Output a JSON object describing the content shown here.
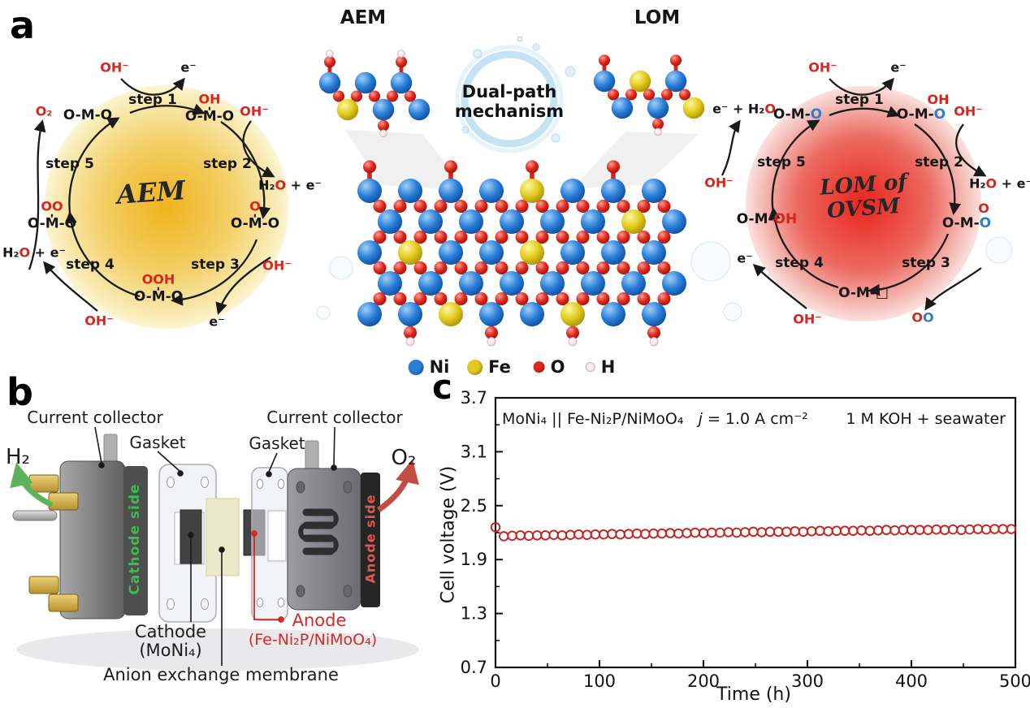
{
  "panel_a": {
    "label": "a",
    "inset_left_label": "AEM",
    "inset_right_label": "LOM",
    "splash_title_line1": "Dual-path",
    "splash_title_line2": "mechanism",
    "legend": [
      {
        "name": "Ni",
        "color": "#2b7fd9"
      },
      {
        "name": "Fe",
        "color": "#e3cb1d"
      },
      {
        "name": "O",
        "color": "#e02a1d"
      },
      {
        "name": "H",
        "color": "#f7edf0"
      }
    ],
    "aem": {
      "title": "AEM",
      "glow_color": "#efb31e",
      "steps": [
        "step 1",
        "step 2",
        "step 3",
        "step 4",
        "step 5"
      ],
      "species": {
        "top_left": "O-M-O",
        "top_right_ads": "OH",
        "top_right_base": "O-M-O",
        "right_ads": "O",
        "right_base": "O-M-O",
        "bottom_ads": "OOH",
        "bottom_base": "O-M-O",
        "left_ads": "OO",
        "left_base": "O-M-O"
      },
      "ions": {
        "oh_in_top": "OH⁻",
        "e_out_top": "e⁻",
        "o2_out": "O₂",
        "oh_in_right": "OH⁻",
        "h2o_right_pre": "H₂",
        "h2o_right_o": "O",
        "h2o_right_post": " + e⁻",
        "oh_in_bottom_right": "OH⁻",
        "e_out_bottom": "e⁻",
        "oh_in_bottom": "OH⁻",
        "h2o_left_pre": "H₂",
        "h2o_left_o": "O",
        "h2o_left_post": " + e⁻"
      }
    },
    "lom": {
      "title_line1": "LOM of",
      "title_line2": "OVSM",
      "glow_color": "#e8251d",
      "steps": [
        "step 1",
        "step 2",
        "step 3",
        "step 4",
        "step 5"
      ],
      "species": {
        "top_left_pre": "O-M-",
        "top_left_o": "O",
        "top_right_ads": "OH",
        "top_right_pre": "O-M-",
        "top_right_o": "O",
        "right_ads": "O",
        "right_pre": "O-M-",
        "right_o": "O",
        "bottom": "O-M-□",
        "left_pre": "O-M-",
        "left_oh": "OH"
      },
      "ions": {
        "oh_in_top": "OH⁻",
        "e_out_top": "e⁻",
        "eh2o_pre": "e⁻ + H₂",
        "eh2o_o": "O",
        "oh_in_right": "OH⁻",
        "h2o_pre": "H₂",
        "h2o_o": "O",
        "h2o_post": " + e⁻",
        "oo_red": "O",
        "oo_blue": "O",
        "oh_in_bottom": "OH⁻",
        "e_out_left": "e⁻",
        "oh_in_left": "OH⁻"
      }
    }
  },
  "panel_b": {
    "label": "b",
    "current_collector_left": "Current collector",
    "gasket_left": "Gasket",
    "gasket_right": "Gasket",
    "current_collector_right": "Current collector",
    "h2": "H₂",
    "o2": "O₂",
    "cathode_side": "Cathode side",
    "anode_side": "Anode side",
    "cathode_label_line1": "Cathode",
    "cathode_label_line2": "(MoNi₄)",
    "anode_label_line1": "Anode",
    "anode_label_line2": "(Fe-Ni₂P/NiMoO₄)",
    "membrane_label": "Anion exchange membrane",
    "h2_arrow_color": "#5cb35a",
    "o2_arrow_color": "#c24d45"
  },
  "panel_c": {
    "label": "c",
    "annotation_cell": "MoNi₄ || Fe-Ni₂P/NiMoO₄",
    "annotation_j_italic": "j",
    "annotation_j_rest": " = 1.0 A cm⁻²",
    "annotation_electrolyte": "1 M KOH + seawater"
  },
  "chart_data": {
    "type": "scatter",
    "title": "",
    "xlabel": "Time (h)",
    "ylabel": "Cell voltage (V)",
    "xlim": [
      0,
      500
    ],
    "ylim": [
      0.7,
      3.7
    ],
    "xticks": [
      0,
      100,
      200,
      300,
      400,
      500
    ],
    "yticks": [
      0.7,
      1.3,
      1.9,
      2.5,
      3.1,
      3.7
    ],
    "grid": false,
    "legend_position": "none",
    "marker": {
      "shape": "open-circle",
      "color": "#c3221f"
    },
    "series": [
      {
        "name": "cell voltage",
        "x": [
          0,
          8,
          16,
          24,
          32,
          40,
          48,
          56,
          64,
          72,
          80,
          88,
          96,
          104,
          112,
          120,
          128,
          136,
          144,
          152,
          160,
          168,
          176,
          184,
          192,
          200,
          208,
          216,
          224,
          232,
          240,
          248,
          256,
          264,
          272,
          280,
          288,
          296,
          304,
          312,
          320,
          328,
          336,
          344,
          352,
          360,
          368,
          376,
          384,
          392,
          400,
          408,
          416,
          424,
          432,
          440,
          448,
          456,
          464,
          472,
          480,
          488,
          496
        ],
        "y": [
          2.26,
          2.16,
          2.165,
          2.17,
          2.165,
          2.17,
          2.17,
          2.175,
          2.17,
          2.175,
          2.18,
          2.175,
          2.18,
          2.18,
          2.185,
          2.18,
          2.185,
          2.19,
          2.185,
          2.19,
          2.19,
          2.195,
          2.19,
          2.195,
          2.2,
          2.195,
          2.2,
          2.2,
          2.205,
          2.2,
          2.205,
          2.21,
          2.205,
          2.21,
          2.21,
          2.21,
          2.215,
          2.21,
          2.215,
          2.22,
          2.215,
          2.22,
          2.22,
          2.22,
          2.225,
          2.22,
          2.225,
          2.23,
          2.225,
          2.23,
          2.23,
          2.23,
          2.23,
          2.235,
          2.23,
          2.235,
          2.23,
          2.235,
          2.24,
          2.235,
          2.24,
          2.24,
          2.24
        ]
      }
    ]
  }
}
